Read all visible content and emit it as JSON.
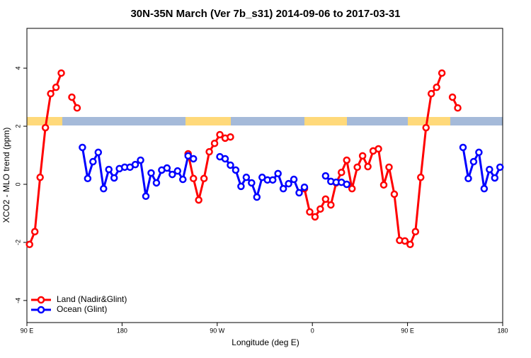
{
  "chart_data": {
    "type": "line",
    "title": "30N-35N March (Ver 7b_s31)   2014-09-06 to 2017-03-31",
    "x_label": "Longitude (deg E)",
    "y_label": "XCO2 - MLO trend (ppm)",
    "xlim": [
      90,
      540
    ],
    "ylim": [
      -4.76,
      5.37
    ],
    "xticks": [
      {
        "value": 90,
        "label": "90 E"
      },
      180,
      {
        "value": 270,
        "label": "90 W"
      },
      {
        "value": 360,
        "label": "0"
      },
      {
        "value": 450,
        "label": "90 E"
      },
      {
        "value": 540,
        "label": "180"
      }
    ],
    "yticks": [
      -4,
      -2,
      0,
      2,
      4
    ],
    "legend": "bottom-left",
    "x": [
      92.5,
      97.5,
      102.5,
      107.5,
      112.5,
      117.5,
      122.5,
      127.5,
      132.5,
      137.5,
      142.5,
      147.5,
      152.5,
      157.5,
      162.5,
      167.5,
      172.5,
      177.5,
      182.5,
      187.5,
      192.5,
      197.5,
      202.5,
      207.5,
      212.5,
      217.5,
      222.5,
      227.5,
      232.5,
      237.5,
      242.5,
      247.5,
      252.5,
      257.5,
      262.5,
      267.5,
      272.5,
      277.5,
      282.5,
      287.5,
      292.5,
      297.5,
      302.5,
      307.5,
      312.5,
      317.5,
      322.5,
      327.5,
      332.5,
      337.5,
      342.5,
      347.5,
      352.5,
      357.5,
      362.5,
      367.5,
      372.5,
      377.5,
      382.5,
      387.5,
      392.5,
      397.5,
      402.5,
      407.5,
      412.5,
      417.5,
      422.5,
      427.5,
      432.5,
      437.5,
      442.5,
      447.5,
      452.5,
      457.5,
      462.5,
      467.5,
      472.5,
      477.5,
      482.5,
      487.5,
      492.5,
      497.5,
      502.5,
      507.5,
      512.5,
      517.5,
      522.5,
      527.5,
      532.5,
      537.5
    ],
    "series": [
      {
        "name": "Land (Nadir&Glint)",
        "color": "#ff0000",
        "values": [
          -2.07,
          -1.63,
          0.24,
          1.95,
          3.12,
          3.34,
          3.83,
          null,
          3.0,
          2.63,
          null,
          null,
          null,
          null,
          null,
          null,
          null,
          null,
          null,
          null,
          null,
          null,
          null,
          null,
          null,
          null,
          null,
          null,
          null,
          null,
          1.05,
          0.2,
          -0.54,
          0.2,
          1.12,
          1.41,
          1.71,
          1.59,
          1.63,
          null,
          null,
          null,
          null,
          null,
          null,
          null,
          null,
          null,
          null,
          null,
          null,
          null,
          -0.15,
          -0.95,
          -1.12,
          -0.85,
          -0.51,
          -0.71,
          0.05,
          0.41,
          0.83,
          -0.15,
          0.59,
          0.98,
          0.61,
          1.15,
          1.22,
          -0.02,
          0.59,
          -0.34,
          -1.93,
          -1.95,
          -2.07,
          -1.63,
          0.24,
          1.95,
          3.12,
          3.34,
          3.83,
          null,
          3.0,
          2.63,
          null,
          null,
          null,
          null,
          null,
          null,
          null,
          null
        ]
      },
      {
        "name": "Ocean (Glint)",
        "color": "#0000ff",
        "values": [
          null,
          null,
          null,
          null,
          null,
          null,
          null,
          null,
          null,
          null,
          1.27,
          0.2,
          0.78,
          1.1,
          -0.15,
          0.51,
          0.22,
          0.54,
          0.59,
          0.59,
          0.68,
          0.83,
          -0.41,
          0.39,
          0.05,
          0.49,
          0.56,
          0.34,
          0.46,
          0.17,
          0.98,
          0.88,
          null,
          null,
          null,
          null,
          0.95,
          0.88,
          0.66,
          0.49,
          -0.07,
          0.24,
          0.05,
          -0.44,
          0.24,
          0.15,
          0.15,
          0.37,
          -0.15,
          0.02,
          0.17,
          -0.29,
          -0.1,
          null,
          null,
          null,
          0.29,
          0.1,
          0.07,
          0.07,
          0,
          null,
          null,
          null,
          null,
          null,
          null,
          null,
          null,
          null,
          null,
          null,
          null,
          null,
          null,
          null,
          null,
          null,
          null,
          null,
          null,
          null,
          1.27,
          0.2,
          0.78,
          1.1,
          -0.15,
          0.51,
          0.22,
          0.59
        ]
      }
    ]
  }
}
